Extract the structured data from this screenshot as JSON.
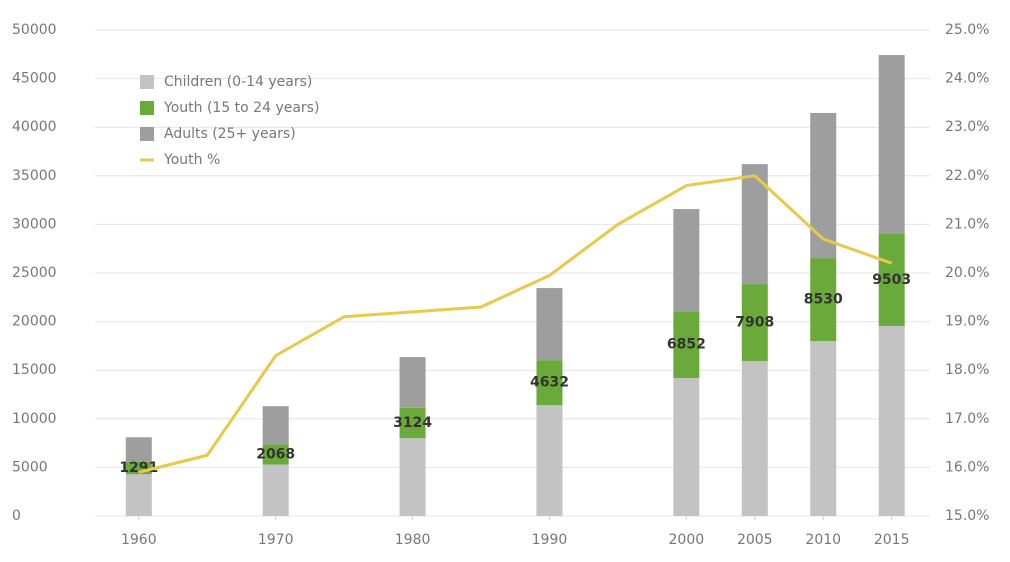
{
  "chart_data": {
    "type": "bar",
    "stacked": true,
    "x": [
      1960,
      1970,
      1980,
      1990,
      2000,
      2005,
      2010,
      2015
    ],
    "xlim": [
      1956.8,
      2017.8
    ],
    "xticks": [
      1960,
      1970,
      1980,
      1990,
      2000,
      2005,
      2010,
      2015
    ],
    "ylim": [
      0,
      50000
    ],
    "yticks": [
      0,
      5000,
      10000,
      15000,
      20000,
      25000,
      30000,
      35000,
      40000,
      45000,
      50000
    ],
    "y2lim": [
      15,
      25
    ],
    "y2ticks": [
      {
        "value": 15,
        "label": "15.0%"
      },
      {
        "value": 16,
        "label": "16.0%"
      },
      {
        "value": 17,
        "label": "17.0%"
      },
      {
        "value": 18,
        "label": "18.0%"
      },
      {
        "value": 19,
        "label": "19.0%"
      },
      {
        "value": 20,
        "label": "20.0%"
      },
      {
        "value": 21,
        "label": "21.0%"
      },
      {
        "value": 22,
        "label": "22.0%"
      },
      {
        "value": 23,
        "label": "23.0%"
      },
      {
        "value": 24,
        "label": "24.0%"
      },
      {
        "value": 25,
        "label": "25.0%"
      }
    ],
    "grid": true,
    "legend": "top-left",
    "series": [
      {
        "name": "Children (0-14 years)",
        "color": "#c3c3c3",
        "values": [
          4300,
          5300,
          8000,
          11400,
          14200,
          15950,
          18000,
          19550
        ]
      },
      {
        "name": "Youth (15 to 24 years)",
        "color": "#6aaa3a",
        "values": [
          1291,
          2068,
          3124,
          4632,
          6852,
          7908,
          8530,
          9503
        ],
        "labels": true
      },
      {
        "name": "Adults (25+ years)",
        "color": "#9e9e9e",
        "values": [
          2509,
          3932,
          5226,
          7418,
          10528,
          12342,
          14930,
          18377
        ]
      },
      {
        "name": "Youth %",
        "color": "#e8c94a",
        "type": "line",
        "axis": "y2",
        "x": [
          1960,
          1965,
          1970,
          1975,
          1980,
          1985,
          1990,
          1995,
          2000,
          2005,
          2010,
          2015
        ],
        "values": [
          15.9,
          16.25,
          18.3,
          19.1,
          19.2,
          19.3,
          19.95,
          21.0,
          21.8,
          22.0,
          20.7,
          20.2
        ]
      }
    ]
  }
}
